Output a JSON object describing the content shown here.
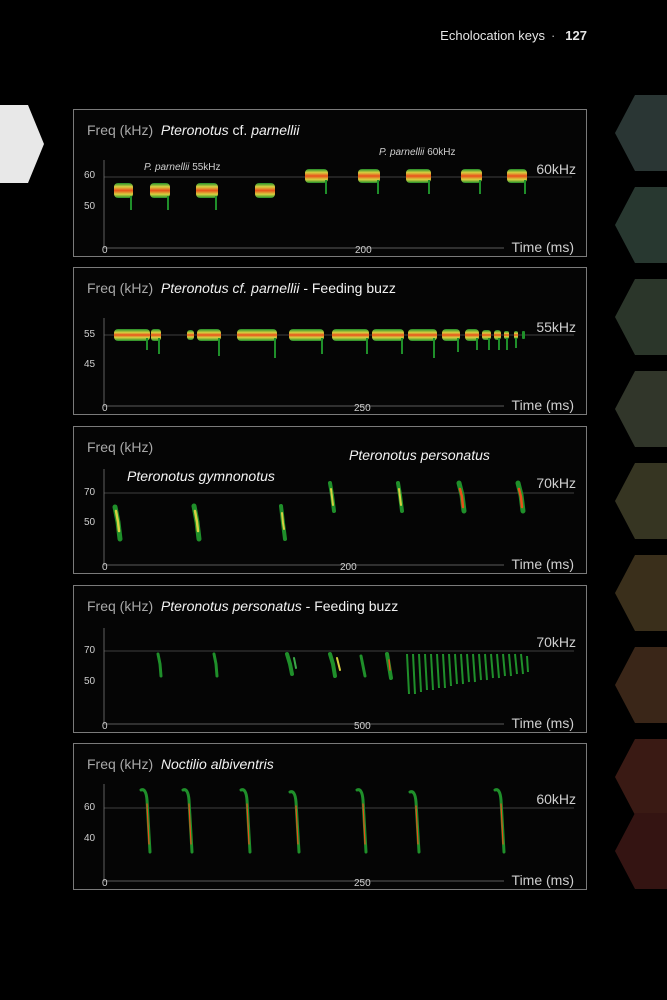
{
  "header": {
    "section": "Echolocation keys",
    "separator": "·",
    "page_number": "127"
  },
  "common": {
    "freq_label": "Freq (kHz)",
    "time_label": "Time (ms)"
  },
  "panels": [
    {
      "species": "Pteronotus",
      "species_mid": "cf.",
      "species2": "parnellii",
      "suffix": "",
      "freq_marker": "60kHz",
      "y_ticks": [
        "60",
        "50"
      ],
      "x_ticks": [
        "0",
        "200"
      ],
      "annotations": [
        {
          "name": "P. parnellii",
          "freq": "55kHz"
        },
        {
          "name": "P. parnellii",
          "freq": "60kHz"
        }
      ]
    },
    {
      "species": "Pteronotus cf. parnellii",
      "suffix": " - Feeding buzz",
      "freq_marker": "55kHz",
      "y_ticks": [
        "55",
        "45"
      ],
      "x_ticks": [
        "0",
        "250"
      ]
    },
    {
      "freq_marker": "70kHz",
      "y_ticks": [
        "70",
        "50"
      ],
      "x_ticks": [
        "0",
        "200"
      ],
      "labels": [
        "Pteronotus gymnonotus",
        "Pteronotus personatus"
      ]
    },
    {
      "species": "Pteronotus personatus",
      "suffix": " - Feeding buzz",
      "freq_marker": "70kHz",
      "y_ticks": [
        "70",
        "50"
      ],
      "x_ticks": [
        "0",
        "500"
      ]
    },
    {
      "species": "Noctilio albiventris",
      "suffix": "",
      "freq_marker": "60kHz",
      "y_ticks": [
        "60",
        "40"
      ],
      "x_ticks": [
        "0",
        "250"
      ]
    }
  ],
  "colors": {
    "bg": "#000000",
    "border": "#7a7a7a",
    "call_core": "#e8501a",
    "call_mid": "#d8d040",
    "call_edge": "#1f8f2a"
  }
}
